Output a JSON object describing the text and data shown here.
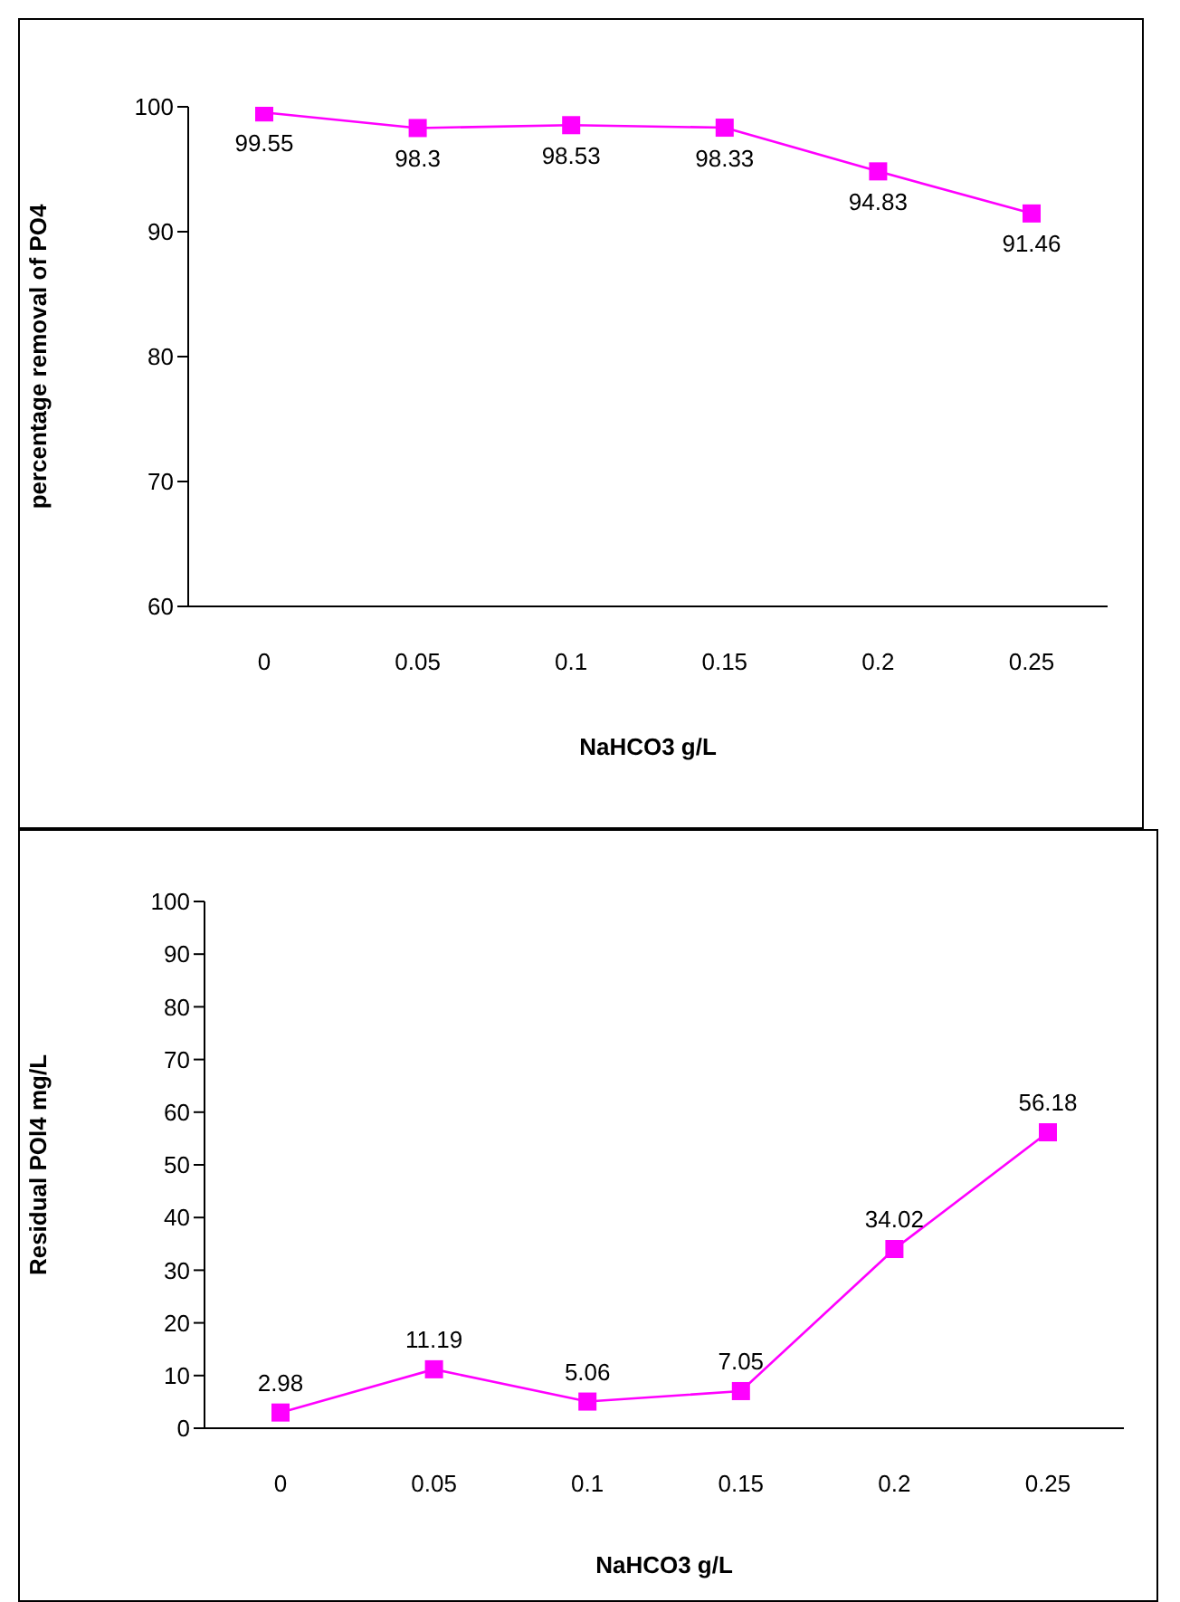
{
  "chart_data": [
    {
      "type": "line",
      "categories": [
        "0",
        "0.05",
        "0.1",
        "0.15",
        "0.2",
        "0.25"
      ],
      "values": [
        99.55,
        98.3,
        98.53,
        98.33,
        94.83,
        91.46
      ],
      "color": "#ff00ff",
      "marker": "square",
      "data_labels": true,
      "ylim": [
        60,
        100
      ],
      "yticks": [
        60,
        70,
        80,
        90,
        100
      ],
      "xlabel": "NaHCO3 g/L",
      "ylabel": "percentage removal of PO4"
    },
    {
      "type": "line",
      "categories": [
        "0",
        "0.05",
        "0.1",
        "0.15",
        "0.2",
        "0.25"
      ],
      "values": [
        2.98,
        11.19,
        5.06,
        7.05,
        34.02,
        56.18
      ],
      "color": "#ff00ff",
      "marker": "square",
      "data_labels": true,
      "ylim": [
        0,
        100
      ],
      "yticks": [
        0,
        10,
        20,
        30,
        40,
        50,
        60,
        70,
        80,
        90,
        100
      ],
      "xlabel": "NaHCO3 g/L",
      "ylabel": "Residual POl4 mg/L"
    }
  ]
}
